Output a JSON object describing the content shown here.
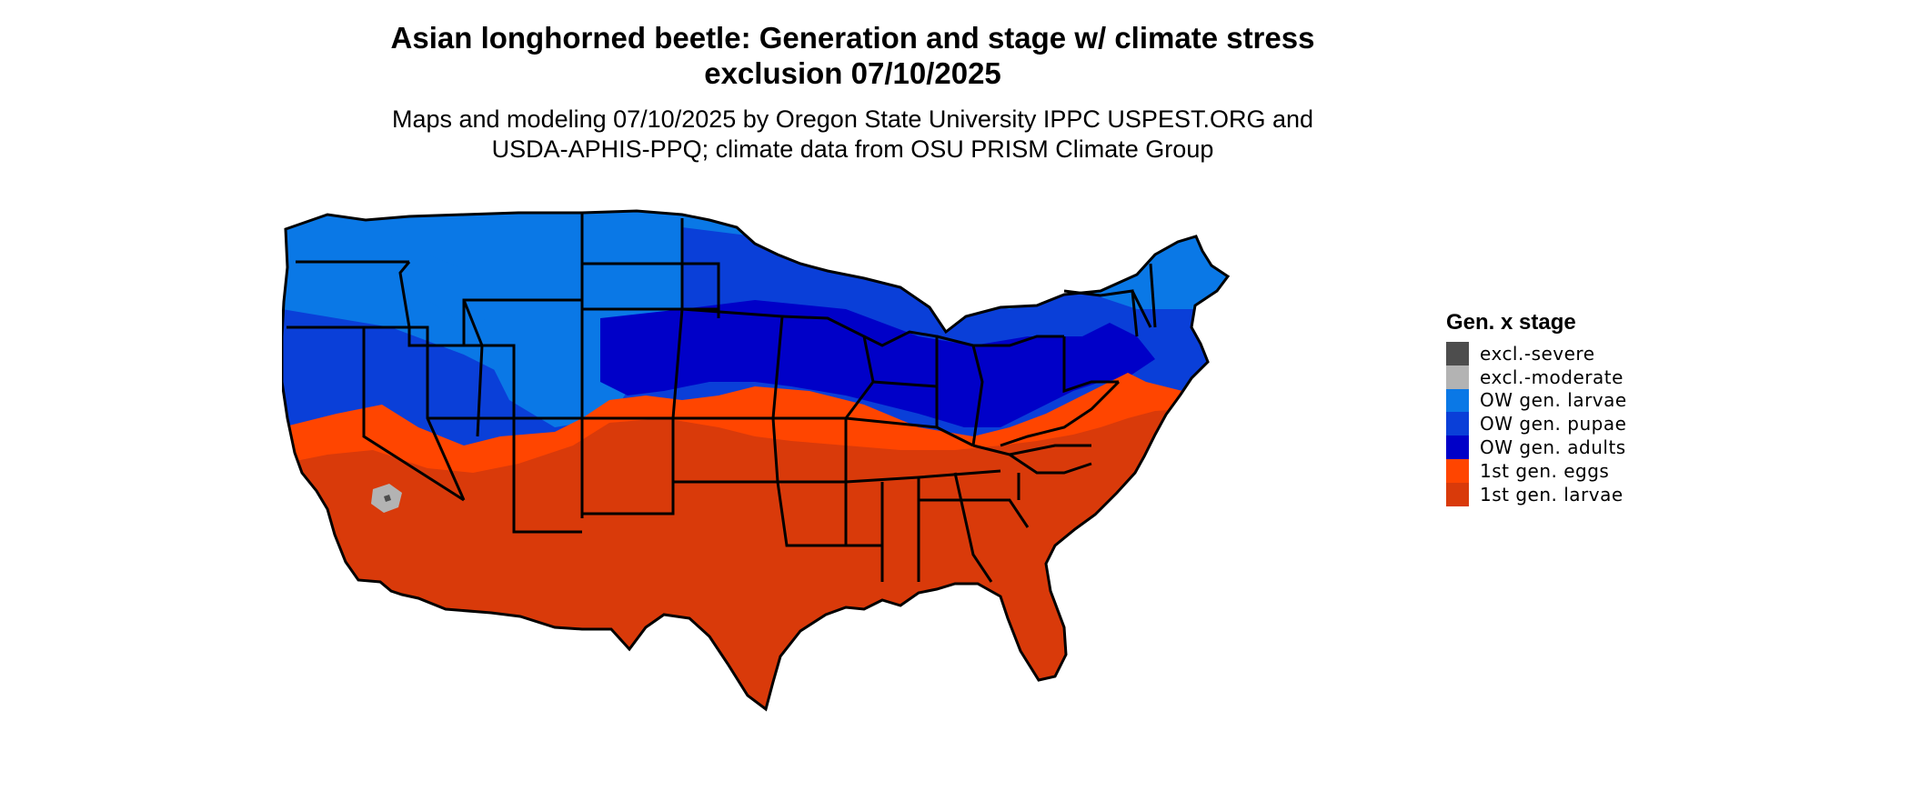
{
  "title": {
    "line1": "Asian longhorned beetle: Generation and stage w/ climate stress",
    "line2": "exclusion 07/10/2025"
  },
  "subtitle": {
    "line1": "Maps and modeling 07/10/2025 by Oregon State University IPPC USPEST.ORG and",
    "line2": "USDA-APHIS-PPQ; climate data from OSU PRISM Climate Group"
  },
  "legend": {
    "title": "Gen. x stage",
    "items": [
      {
        "label": "excl.-severe",
        "color": "#4d4d4d"
      },
      {
        "label": "excl.-moderate",
        "color": "#b3b3b3"
      },
      {
        "label": "OW gen. larvae",
        "color": "#0a78e6"
      },
      {
        "label": "OW gen. pupae",
        "color": "#0a3fd8"
      },
      {
        "label": "OW gen. adults",
        "color": "#0000c8"
      },
      {
        "label": "1st gen. eggs",
        "color": "#ff4500"
      },
      {
        "label": "1st gen. larvae",
        "color": "#d93a0a"
      }
    ]
  },
  "map": {
    "region": "contiguous United States",
    "state_borders": true
  }
}
